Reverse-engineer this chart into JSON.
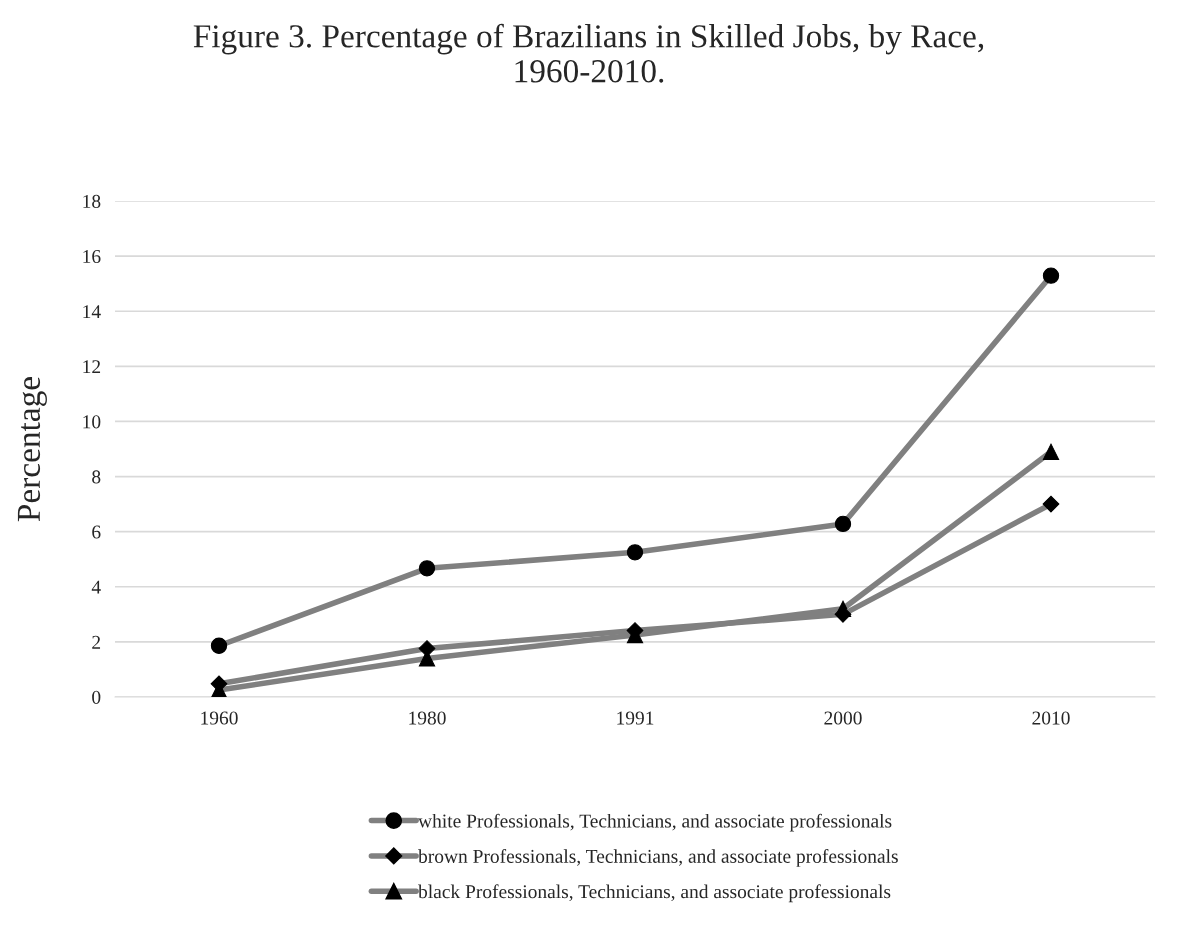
{
  "chart_data": {
    "type": "line",
    "title": "Figure 3. Percentage of Brazilians in Skilled Jobs, by Race,\n1960-2010.",
    "ylabel": "Percentage",
    "categories": [
      "1960",
      "1980",
      "1991",
      "2000",
      "2010"
    ],
    "series": [
      {
        "name": "white Professionals, Technicians, and associate professionals",
        "color": "#808080",
        "marker": "circle",
        "values": [
          1.86,
          4.67,
          5.25,
          6.28,
          15.29
        ]
      },
      {
        "name": "brown Professionals, Technicians, and associate professionals",
        "color": "#808080",
        "marker": "diamond",
        "values": [
          0.48,
          1.76,
          2.41,
          3.0,
          7.0
        ]
      },
      {
        "name": "black Professionals, Technicians, and associate professionals",
        "color": "#808080",
        "marker": "triangle",
        "values": [
          0.25,
          1.4,
          2.25,
          3.2,
          8.9
        ]
      }
    ],
    "ylim": [
      0,
      18
    ],
    "yticks": [
      0,
      2,
      4,
      6,
      8,
      10,
      12,
      14,
      16,
      18
    ],
    "grid": "y",
    "legend": "bottom",
    "line_style": "solid"
  }
}
